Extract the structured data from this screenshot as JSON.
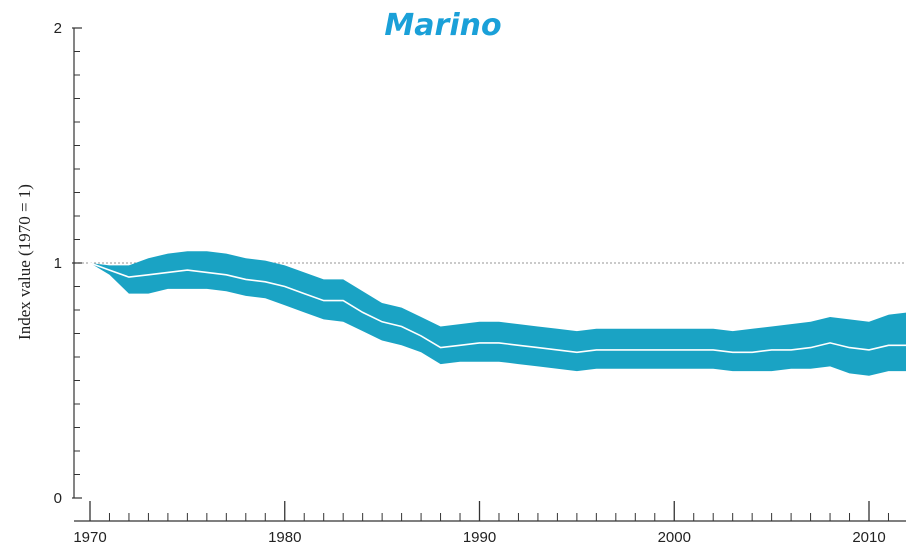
{
  "chart_data": {
    "type": "area",
    "title": "Marino",
    "xlabel": "",
    "ylabel": "Index value (1970 = 1)",
    "xlim": [
      1969,
      2012
    ],
    "ylim": [
      0,
      2
    ],
    "x_ticks": [
      1970,
      1980,
      1990,
      2000,
      2010
    ],
    "y_ticks": [
      0,
      1,
      2
    ],
    "x_tick_labels": [
      "1970",
      "1980",
      "1990",
      "2000",
      "2010"
    ],
    "y_tick_labels": [
      "0",
      "1",
      "2"
    ],
    "reference_line": 1,
    "grid": false,
    "colors": {
      "band": "#1aa3c4",
      "line": "#ffffff",
      "axis": "#333333",
      "reference": "#aaaaaa",
      "title": "#1aa0d8"
    },
    "x": [
      1970,
      1971,
      1972,
      1973,
      1974,
      1975,
      1976,
      1977,
      1978,
      1979,
      1980,
      1981,
      1982,
      1983,
      1984,
      1985,
      1986,
      1987,
      1988,
      1989,
      1990,
      1991,
      1992,
      1993,
      1994,
      1995,
      1996,
      1997,
      1998,
      1999,
      2000,
      2001,
      2002,
      2003,
      2004,
      2005,
      2006,
      2007,
      2008,
      2009,
      2010,
      2011,
      2012
    ],
    "series": [
      {
        "values": [
          1.0,
          0.97,
          0.94,
          0.95,
          0.96,
          0.97,
          0.96,
          0.95,
          0.93,
          0.92,
          0.9,
          0.87,
          0.84,
          0.84,
          0.79,
          0.75,
          0.73,
          0.69,
          0.64,
          0.65,
          0.66,
          0.66,
          0.65,
          0.64,
          0.63,
          0.62,
          0.63,
          0.63,
          0.63,
          0.63,
          0.63,
          0.63,
          0.63,
          0.62,
          0.62,
          0.63,
          0.63,
          0.64,
          0.66,
          0.64,
          0.63,
          0.65,
          0.65
        ],
        "lower": [
          1.0,
          0.95,
          0.87,
          0.87,
          0.89,
          0.89,
          0.89,
          0.88,
          0.86,
          0.85,
          0.82,
          0.79,
          0.76,
          0.75,
          0.71,
          0.67,
          0.65,
          0.62,
          0.57,
          0.58,
          0.58,
          0.58,
          0.57,
          0.56,
          0.55,
          0.54,
          0.55,
          0.55,
          0.55,
          0.55,
          0.55,
          0.55,
          0.55,
          0.54,
          0.54,
          0.54,
          0.55,
          0.55,
          0.56,
          0.53,
          0.52,
          0.54,
          0.54
        ],
        "upper": [
          1.0,
          0.99,
          0.99,
          1.02,
          1.04,
          1.05,
          1.05,
          1.04,
          1.02,
          1.01,
          0.99,
          0.96,
          0.93,
          0.93,
          0.88,
          0.83,
          0.81,
          0.77,
          0.73,
          0.74,
          0.75,
          0.75,
          0.74,
          0.73,
          0.72,
          0.71,
          0.72,
          0.72,
          0.72,
          0.72,
          0.72,
          0.72,
          0.72,
          0.71,
          0.72,
          0.73,
          0.74,
          0.75,
          0.77,
          0.76,
          0.75,
          0.78,
          0.79
        ]
      }
    ]
  }
}
